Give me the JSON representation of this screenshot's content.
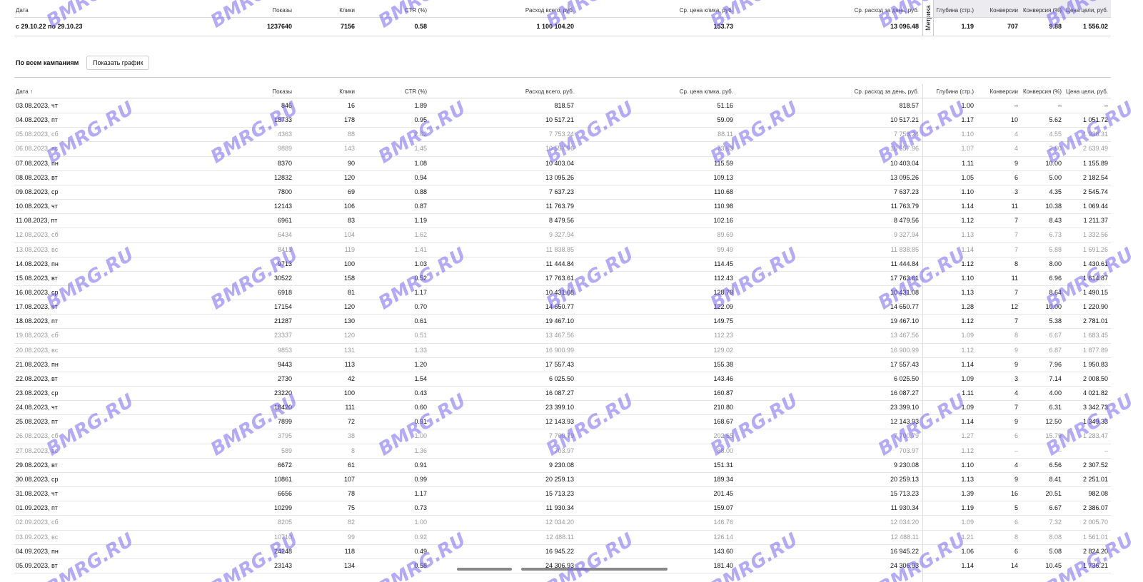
{
  "summary": {
    "headers": [
      "Дата",
      "Показы",
      "Клики",
      "CTR (%)",
      "Расход всего, руб.",
      "Ср. цена клика, руб.",
      "Ср. расход за день, руб.",
      "Глубина (стр.)",
      "Конверсии",
      "Конверсия (%)",
      "Цена цели, руб."
    ],
    "metrika_label": "Метрика",
    "row": [
      "с 29.10.22 по 29.10.23",
      "1237640",
      "7156",
      "0.58",
      "1 100 104.20",
      "153.73",
      "13 096.48",
      "1.19",
      "707",
      "9.88",
      "1 556.02"
    ]
  },
  "section": {
    "title": "По всем кампаниям",
    "button": "Показать график"
  },
  "table": {
    "headers": [
      "Дата ↑",
      "Показы",
      "Клики",
      "CTR (%)",
      "Расход всего, руб.",
      "Ср. цена клика, руб.",
      "Ср. расход за день, руб.",
      "Глубина (стр.)",
      "Конверсии",
      "Конверсия (%)",
      "Цена цели, руб."
    ],
    "rows": [
      {
        "cells": [
          "03.08.2023, чт",
          "846",
          "16",
          "1.89",
          "818.57",
          "51.16",
          "818.57",
          "1.00",
          "–",
          "–",
          "–"
        ],
        "muted": false
      },
      {
        "cells": [
          "04.08.2023, пт",
          "18733",
          "178",
          "0.95",
          "10 517.21",
          "59.09",
          "10 517.21",
          "1.17",
          "10",
          "5.62",
          "1 051.72"
        ],
        "muted": false
      },
      {
        "cells": [
          "05.08.2023, сб",
          "4363",
          "88",
          "2.02",
          "7 753.24",
          "88.11",
          "7 753.24",
          "1.10",
          "4",
          "4.55",
          "1 938.31"
        ],
        "muted": true
      },
      {
        "cells": [
          "06.08.2023, вс",
          "9889",
          "143",
          "1.45",
          "10 557.96",
          "73.83",
          "10 557.96",
          "1.07",
          "4",
          "2.80",
          "2 639.49"
        ],
        "muted": true
      },
      {
        "cells": [
          "07.08.2023, пн",
          "8370",
          "90",
          "1.08",
          "10 403.04",
          "115.59",
          "10 403.04",
          "1.11",
          "9",
          "10.00",
          "1 155.89"
        ],
        "muted": false
      },
      {
        "cells": [
          "08.08.2023, вт",
          "12832",
          "120",
          "0.94",
          "13 095.26",
          "109.13",
          "13 095.26",
          "1.05",
          "6",
          "5.00",
          "2 182.54"
        ],
        "muted": false
      },
      {
        "cells": [
          "09.08.2023, ср",
          "7800",
          "69",
          "0.88",
          "7 637.23",
          "110.68",
          "7 637.23",
          "1.10",
          "3",
          "4.35",
          "2 545.74"
        ],
        "muted": false
      },
      {
        "cells": [
          "10.08.2023, чт",
          "12143",
          "106",
          "0.87",
          "11 763.79",
          "110.98",
          "11 763.79",
          "1.14",
          "11",
          "10.38",
          "1 069.44"
        ],
        "muted": false
      },
      {
        "cells": [
          "11.08.2023, пт",
          "6961",
          "83",
          "1.19",
          "8 479.56",
          "102.16",
          "8 479.56",
          "1.12",
          "7",
          "8.43",
          "1 211.37"
        ],
        "muted": false
      },
      {
        "cells": [
          "12.08.2023, сб",
          "6434",
          "104",
          "1.62",
          "9 327.94",
          "89.69",
          "9 327.94",
          "1.13",
          "7",
          "6.73",
          "1 332.56"
        ],
        "muted": true
      },
      {
        "cells": [
          "13.08.2023, вс",
          "8413",
          "119",
          "1.41",
          "11 838.85",
          "99.49",
          "11 838.85",
          "1.14",
          "7",
          "5.88",
          "1 691.26"
        ],
        "muted": true
      },
      {
        "cells": [
          "14.08.2023, пн",
          "9713",
          "100",
          "1.03",
          "11 444.84",
          "114.45",
          "11 444.84",
          "1.12",
          "8",
          "8.00",
          "1 430.61"
        ],
        "muted": false
      },
      {
        "cells": [
          "15.08.2023, вт",
          "30522",
          "158",
          "0.52",
          "17 763.61",
          "112.43",
          "17 763.61",
          "1.10",
          "11",
          "6.96",
          "1 614.87"
        ],
        "muted": false
      },
      {
        "cells": [
          "16.08.2023, ср",
          "6918",
          "81",
          "1.17",
          "10 431.08",
          "128.78",
          "10 431.08",
          "1.13",
          "7",
          "8.64",
          "1 490.15"
        ],
        "muted": false
      },
      {
        "cells": [
          "17.08.2023, чт",
          "17154",
          "120",
          "0.70",
          "14 650.77",
          "122.09",
          "14 650.77",
          "1.28",
          "12",
          "10.00",
          "1 220.90"
        ],
        "muted": false
      },
      {
        "cells": [
          "18.08.2023, пт",
          "21287",
          "130",
          "0.61",
          "19 467.10",
          "149.75",
          "19 467.10",
          "1.12",
          "7",
          "5.38",
          "2 781.01"
        ],
        "muted": false
      },
      {
        "cells": [
          "19.08.2023, сб",
          "23337",
          "120",
          "0.51",
          "13 467.56",
          "112.23",
          "13 467.56",
          "1.09",
          "8",
          "6.67",
          "1 683.45"
        ],
        "muted": true
      },
      {
        "cells": [
          "20.08.2023, вс",
          "9853",
          "131",
          "1.33",
          "16 900.99",
          "129.02",
          "16 900.99",
          "1.12",
          "9",
          "6.87",
          "1 877.89"
        ],
        "muted": true
      },
      {
        "cells": [
          "21.08.2023, пн",
          "9443",
          "113",
          "1.20",
          "17 557.43",
          "155.38",
          "17 557.43",
          "1.14",
          "9",
          "7.96",
          "1 950.83"
        ],
        "muted": false
      },
      {
        "cells": [
          "22.08.2023, вт",
          "2730",
          "42",
          "1.54",
          "6 025.50",
          "143.46",
          "6 025.50",
          "1.09",
          "3",
          "7.14",
          "2 008.50"
        ],
        "muted": false
      },
      {
        "cells": [
          "23.08.2023, ср",
          "23220",
          "100",
          "0.43",
          "16 087.27",
          "160.87",
          "16 087.27",
          "1.11",
          "4",
          "4.00",
          "4 021.82"
        ],
        "muted": false
      },
      {
        "cells": [
          "24.08.2023, чт",
          "18420",
          "111",
          "0.60",
          "23 399.10",
          "210.80",
          "23 399.10",
          "1.09",
          "7",
          "6.31",
          "3 342.73"
        ],
        "muted": false
      },
      {
        "cells": [
          "25.08.2023, пт",
          "7899",
          "72",
          "0.91",
          "12 143.93",
          "168.67",
          "12 143.93",
          "1.14",
          "9",
          "12.50",
          "1 349.33"
        ],
        "muted": false
      },
      {
        "cells": [
          "26.08.2023, сб",
          "3795",
          "38",
          "1.00",
          "7 700.79",
          "202.65",
          "7 700.79",
          "1.27",
          "6",
          "15.79",
          "1 283.47"
        ],
        "muted": true
      },
      {
        "cells": [
          "27.08.2023, вс",
          "589",
          "8",
          "1.36",
          "703.97",
          "88.00",
          "703.97",
          "1.12",
          "–",
          "–",
          "–"
        ],
        "muted": true
      },
      {
        "cells": [
          "29.08.2023, вт",
          "6672",
          "61",
          "0.91",
          "9 230.08",
          "151.31",
          "9 230.08",
          "1.10",
          "4",
          "6.56",
          "2 307.52"
        ],
        "muted": false
      },
      {
        "cells": [
          "30.08.2023, ср",
          "10861",
          "107",
          "0.99",
          "20 259.13",
          "189.34",
          "20 259.13",
          "1.13",
          "9",
          "8.41",
          "2 251.01"
        ],
        "muted": false
      },
      {
        "cells": [
          "31.08.2023, чт",
          "6656",
          "78",
          "1.17",
          "15 713.23",
          "201.45",
          "15 713.23",
          "1.39",
          "16",
          "20.51",
          "982.08"
        ],
        "muted": false
      },
      {
        "cells": [
          "01.09.2023, пт",
          "10299",
          "75",
          "0.73",
          "11 930.34",
          "159.07",
          "11 930.34",
          "1.19",
          "5",
          "6.67",
          "2 386.07"
        ],
        "muted": false
      },
      {
        "cells": [
          "02.09.2023, сб",
          "8205",
          "82",
          "1.00",
          "12 034.20",
          "146.76",
          "12 034.20",
          "1.09",
          "6",
          "7.32",
          "2 005.70"
        ],
        "muted": true
      },
      {
        "cells": [
          "03.09.2023, вс",
          "10710",
          "99",
          "0.92",
          "12 488.11",
          "126.14",
          "12 488.11",
          "1.21",
          "8",
          "8.08",
          "1 561.01"
        ],
        "muted": true
      },
      {
        "cells": [
          "04.09.2023, пн",
          "24248",
          "118",
          "0.49",
          "16 945.22",
          "143.60",
          "16 945.22",
          "1.06",
          "6",
          "5.08",
          "2 824.20"
        ],
        "muted": false
      },
      {
        "cells": [
          "05.09.2023, вт",
          "23143",
          "134",
          "0.58",
          "24 306.93",
          "181.40",
          "24 306.93",
          "1.14",
          "14",
          "10.45",
          "1 736.21"
        ],
        "muted": false
      }
    ]
  },
  "watermark": "BMRG.RU"
}
